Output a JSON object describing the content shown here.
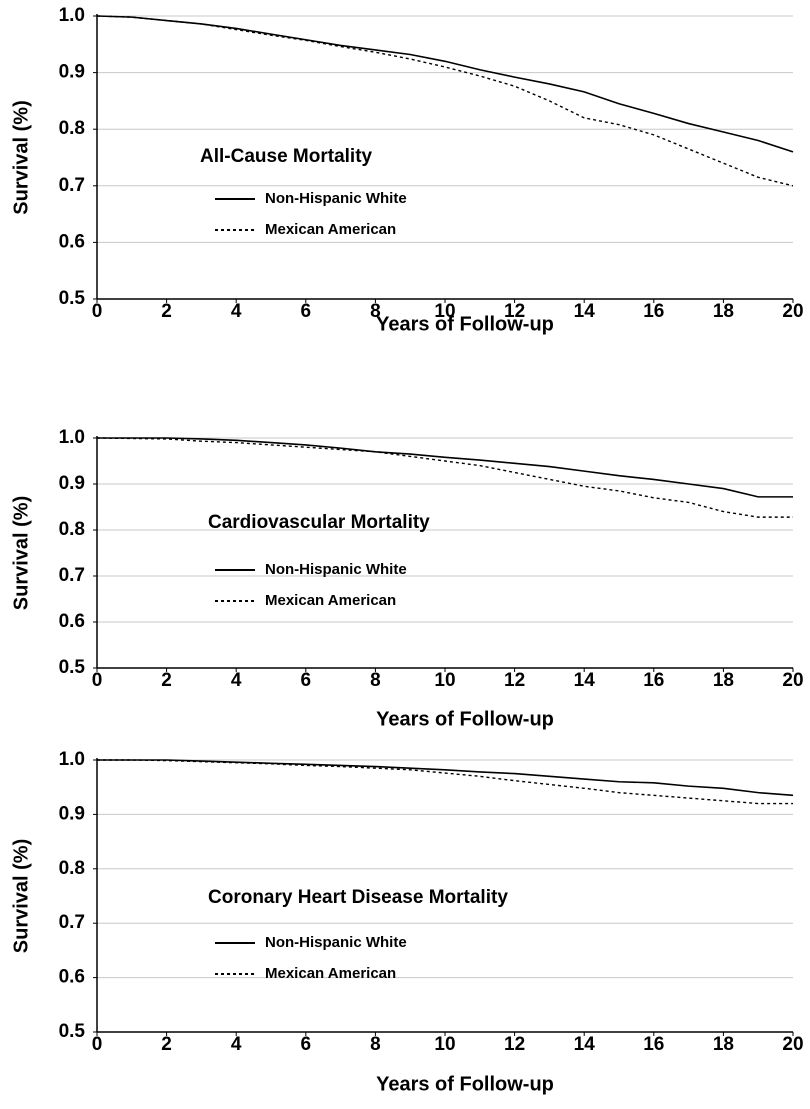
{
  "chart_data": [
    {
      "type": "line",
      "title": "All-Cause Mortality",
      "x_label": "Years of Follow-up",
      "y_label": "Survival (%)",
      "x": [
        0,
        1,
        2,
        3,
        4,
        5,
        6,
        7,
        8,
        9,
        10,
        11,
        12,
        13,
        14,
        15,
        16,
        17,
        18,
        19,
        20
      ],
      "series": [
        {
          "name": "Non-Hispanic White",
          "color": "#000000",
          "line_style": "solid",
          "values": [
            1.0,
            0.998,
            0.992,
            0.986,
            0.978,
            0.968,
            0.958,
            0.948,
            0.94,
            0.932,
            0.92,
            0.905,
            0.892,
            0.88,
            0.866,
            0.845,
            0.828,
            0.81,
            0.795,
            0.78,
            0.76
          ]
        },
        {
          "name": "Mexican American",
          "color": "#000000",
          "line_style": "dotted",
          "values": [
            1.0,
            0.998,
            0.992,
            0.986,
            0.976,
            0.966,
            0.957,
            0.946,
            0.936,
            0.924,
            0.91,
            0.894,
            0.876,
            0.85,
            0.82,
            0.808,
            0.79,
            0.765,
            0.74,
            0.715,
            0.7
          ]
        }
      ],
      "xlim": [
        0,
        20
      ],
      "xticks": [
        0,
        2,
        4,
        6,
        8,
        10,
        12,
        14,
        16,
        18,
        20
      ],
      "ylim": [
        0.5,
        1.0
      ],
      "yticks": [
        0.5,
        0.6,
        0.7,
        0.8,
        0.9,
        {
          "value": 1,
          "label": "1.0"
        }
      ],
      "grid": true
    },
    {
      "type": "line",
      "title": "Cardiovascular Mortality",
      "x_label": "Years of Follow-up",
      "y_label": "Survival (%)",
      "x": [
        0,
        1,
        2,
        3,
        4,
        5,
        6,
        7,
        8,
        9,
        10,
        11,
        12,
        13,
        14,
        15,
        16,
        17,
        18,
        19,
        20
      ],
      "series": [
        {
          "name": "Non-Hispanic White",
          "color": "#000000",
          "line_style": "solid",
          "values": [
            1.0,
            1.0,
            1.0,
            0.998,
            0.995,
            0.99,
            0.985,
            0.978,
            0.97,
            0.965,
            0.958,
            0.952,
            0.945,
            0.938,
            0.928,
            0.918,
            0.91,
            0.9,
            0.89,
            0.872,
            0.872
          ]
        },
        {
          "name": "Mexican American",
          "color": "#000000",
          "line_style": "dotted",
          "values": [
            1.0,
            0.999,
            0.998,
            0.993,
            0.99,
            0.985,
            0.98,
            0.975,
            0.97,
            0.96,
            0.95,
            0.94,
            0.925,
            0.91,
            0.895,
            0.885,
            0.87,
            0.86,
            0.84,
            0.828,
            0.828
          ]
        }
      ],
      "xlim": [
        0,
        20
      ],
      "xticks": [
        0,
        2,
        4,
        6,
        8,
        10,
        12,
        14,
        16,
        18,
        20
      ],
      "ylim": [
        0.5,
        1.0
      ],
      "yticks": [
        0.5,
        0.6,
        0.7,
        0.8,
        0.9,
        {
          "value": 1,
          "label": "1.0"
        }
      ],
      "grid": true
    },
    {
      "type": "line",
      "title": "Coronary Heart Disease Mortality",
      "x_label": "Years of Follow-up",
      "y_label": "Survival (%)",
      "x": [
        0,
        1,
        2,
        3,
        4,
        5,
        6,
        7,
        8,
        9,
        10,
        11,
        12,
        13,
        14,
        15,
        16,
        17,
        18,
        19,
        20
      ],
      "series": [
        {
          "name": "Non-Hispanic White",
          "color": "#000000",
          "line_style": "solid",
          "values": [
            1.0,
            1.0,
            1.0,
            0.998,
            0.996,
            0.994,
            0.992,
            0.99,
            0.988,
            0.985,
            0.982,
            0.978,
            0.975,
            0.97,
            0.965,
            0.96,
            0.958,
            0.952,
            0.948,
            0.94,
            0.935
          ]
        },
        {
          "name": "Mexican American",
          "color": "#000000",
          "line_style": "dotted",
          "values": [
            1.0,
            1.0,
            0.999,
            0.997,
            0.995,
            0.993,
            0.99,
            0.988,
            0.985,
            0.982,
            0.976,
            0.97,
            0.962,
            0.955,
            0.948,
            0.94,
            0.935,
            0.93,
            0.925,
            0.92,
            0.92
          ]
        }
      ],
      "xlim": [
        0,
        20
      ],
      "xticks": [
        0,
        2,
        4,
        6,
        8,
        10,
        12,
        14,
        16,
        18,
        20
      ],
      "ylim": [
        0.5,
        1.0
      ],
      "yticks": [
        0.5,
        0.6,
        0.7,
        0.8,
        0.9,
        {
          "value": 1,
          "label": "1.0"
        }
      ],
      "grid": true
    }
  ]
}
